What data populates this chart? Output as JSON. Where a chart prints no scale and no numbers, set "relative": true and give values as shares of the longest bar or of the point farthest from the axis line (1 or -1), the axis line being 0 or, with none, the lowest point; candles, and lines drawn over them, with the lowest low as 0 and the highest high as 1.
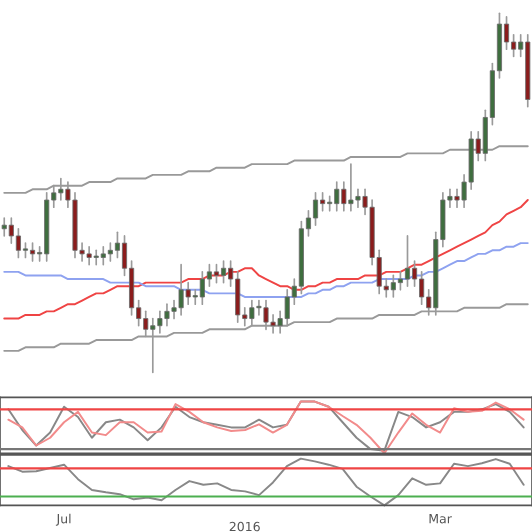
{
  "chart_data": [
    {
      "type": "candlestick",
      "relative": true,
      "categories": [
        null,
        null,
        null,
        null,
        null,
        null,
        null,
        null,
        null,
        null,
        null,
        null,
        null,
        null,
        null,
        null,
        null,
        null,
        null,
        null,
        null,
        null,
        null,
        null,
        null,
        null,
        null,
        null,
        null,
        null,
        null,
        null,
        null,
        null,
        null,
        null,
        null,
        null,
        null,
        null,
        null,
        null,
        null,
        null,
        null,
        null,
        null,
        null,
        null,
        null,
        null,
        null,
        null,
        null,
        null,
        null,
        null,
        null,
        null,
        null,
        null,
        null,
        null,
        null,
        null,
        null,
        null,
        null,
        null,
        null,
        null,
        null,
        null,
        null,
        null
      ],
      "ohlc": [
        [
          0.4,
          0.43,
          0.38,
          0.41
        ],
        [
          0.41,
          0.43,
          0.36,
          0.38
        ],
        [
          0.38,
          0.4,
          0.32,
          0.34
        ],
        [
          0.34,
          0.36,
          0.32,
          0.34
        ],
        [
          0.34,
          0.36,
          0.31,
          0.33
        ],
        [
          0.33,
          0.35,
          0.31,
          0.33
        ],
        [
          0.33,
          0.5,
          0.31,
          0.48
        ],
        [
          0.48,
          0.52,
          0.46,
          0.5
        ],
        [
          0.5,
          0.54,
          0.48,
          0.51
        ],
        [
          0.51,
          0.53,
          0.46,
          0.48
        ],
        [
          0.48,
          0.5,
          0.32,
          0.34
        ],
        [
          0.34,
          0.36,
          0.31,
          0.33
        ],
        [
          0.33,
          0.35,
          0.3,
          0.32
        ],
        [
          0.32,
          0.34,
          0.3,
          0.32
        ],
        [
          0.32,
          0.35,
          0.3,
          0.33
        ],
        [
          0.33,
          0.36,
          0.31,
          0.34
        ],
        [
          0.34,
          0.39,
          0.32,
          0.36
        ],
        [
          0.36,
          0.38,
          0.27,
          0.29
        ],
        [
          0.29,
          0.31,
          0.16,
          0.18
        ],
        [
          0.18,
          0.2,
          0.13,
          0.15
        ],
        [
          0.15,
          0.17,
          0.1,
          0.12
        ],
        [
          0.12,
          0.15,
          0.0,
          0.13
        ],
        [
          0.13,
          0.17,
          0.11,
          0.15
        ],
        [
          0.15,
          0.19,
          0.13,
          0.17
        ],
        [
          0.17,
          0.2,
          0.15,
          0.18
        ],
        [
          0.18,
          0.3,
          0.16,
          0.23
        ],
        [
          0.23,
          0.25,
          0.19,
          0.21
        ],
        [
          0.21,
          0.23,
          0.19,
          0.21
        ],
        [
          0.21,
          0.28,
          0.19,
          0.26
        ],
        [
          0.26,
          0.3,
          0.24,
          0.28
        ],
        [
          0.28,
          0.3,
          0.25,
          0.27
        ],
        [
          0.27,
          0.31,
          0.25,
          0.29
        ],
        [
          0.29,
          0.31,
          0.24,
          0.26
        ],
        [
          0.26,
          0.28,
          0.14,
          0.16
        ],
        [
          0.16,
          0.18,
          0.13,
          0.15
        ],
        [
          0.15,
          0.2,
          0.13,
          0.18
        ],
        [
          0.18,
          0.2,
          0.16,
          0.18
        ],
        [
          0.18,
          0.2,
          0.12,
          0.14
        ],
        [
          0.14,
          0.16,
          0.11,
          0.13
        ],
        [
          0.13,
          0.17,
          0.11,
          0.15
        ],
        [
          0.15,
          0.23,
          0.13,
          0.21
        ],
        [
          0.21,
          0.26,
          0.19,
          0.24
        ],
        [
          0.24,
          0.42,
          0.22,
          0.4
        ],
        [
          0.4,
          0.45,
          0.38,
          0.43
        ],
        [
          0.43,
          0.5,
          0.41,
          0.48
        ],
        [
          0.48,
          0.5,
          0.45,
          0.47
        ],
        [
          0.47,
          0.49,
          0.45,
          0.47
        ],
        [
          0.47,
          0.53,
          0.45,
          0.51
        ],
        [
          0.51,
          0.53,
          0.45,
          0.47
        ],
        [
          0.47,
          0.58,
          0.45,
          0.48
        ],
        [
          0.48,
          0.51,
          0.46,
          0.49
        ],
        [
          0.49,
          0.51,
          0.44,
          0.46
        ],
        [
          0.46,
          0.48,
          0.3,
          0.32
        ],
        [
          0.32,
          0.34,
          0.22,
          0.24
        ],
        [
          0.24,
          0.26,
          0.21,
          0.23
        ],
        [
          0.23,
          0.27,
          0.21,
          0.25
        ],
        [
          0.25,
          0.28,
          0.23,
          0.26
        ],
        [
          0.26,
          0.38,
          0.24,
          0.29
        ],
        [
          0.29,
          0.31,
          0.24,
          0.26
        ],
        [
          0.26,
          0.28,
          0.19,
          0.21
        ],
        [
          0.21,
          0.23,
          0.16,
          0.18
        ],
        [
          0.18,
          0.39,
          0.16,
          0.37
        ],
        [
          0.37,
          0.5,
          0.35,
          0.48
        ],
        [
          0.48,
          0.51,
          0.46,
          0.49
        ],
        [
          0.49,
          0.51,
          0.46,
          0.48
        ],
        [
          0.48,
          0.55,
          0.46,
          0.53
        ],
        [
          0.53,
          0.67,
          0.51,
          0.65
        ],
        [
          0.65,
          0.67,
          0.59,
          0.61
        ],
        [
          0.61,
          0.73,
          0.59,
          0.71
        ],
        [
          0.71,
          0.86,
          0.69,
          0.84
        ],
        [
          0.84,
          1.0,
          0.82,
          0.97
        ],
        [
          0.97,
          0.99,
          0.9,
          0.92
        ],
        [
          0.92,
          0.94,
          0.88,
          0.9
        ],
        [
          0.9,
          0.94,
          0.88,
          0.92
        ],
        [
          0.92,
          0.94,
          0.74,
          0.76
        ]
      ],
      "series": [
        {
          "type": "line",
          "color": "#ef4444",
          "values": [
            0.15,
            0.15,
            0.15,
            0.16,
            0.16,
            0.16,
            0.17,
            0.17,
            0.18,
            0.19,
            0.19,
            0.2,
            0.21,
            0.22,
            0.22,
            0.23,
            0.24,
            0.24,
            0.24,
            0.24,
            0.25,
            0.25,
            0.25,
            0.25,
            0.25,
            0.25,
            0.26,
            0.26,
            0.26,
            0.27,
            0.27,
            0.27,
            0.28,
            0.28,
            0.29,
            0.29,
            0.27,
            0.26,
            0.25,
            0.24,
            0.24,
            0.23,
            0.23,
            0.24,
            0.24,
            0.25,
            0.25,
            0.26,
            0.26,
            0.26,
            0.26,
            0.27,
            0.27,
            0.27,
            0.28,
            0.28,
            0.28,
            0.29,
            0.3,
            0.3,
            0.31,
            0.32,
            0.33,
            0.34,
            0.35,
            0.36,
            0.37,
            0.38,
            0.39,
            0.41,
            0.42,
            0.44,
            0.45,
            0.46,
            0.48
          ]
        },
        {
          "type": "line",
          "color": "#8ea2f0",
          "values": [
            0.28,
            0.28,
            0.28,
            0.27,
            0.27,
            0.27,
            0.27,
            0.27,
            0.27,
            0.26,
            0.26,
            0.26,
            0.26,
            0.26,
            0.26,
            0.25,
            0.25,
            0.25,
            0.25,
            0.25,
            0.24,
            0.24,
            0.24,
            0.24,
            0.24,
            0.23,
            0.23,
            0.23,
            0.23,
            0.22,
            0.22,
            0.22,
            0.22,
            0.22,
            0.21,
            0.21,
            0.21,
            0.21,
            0.21,
            0.21,
            0.21,
            0.21,
            0.21,
            0.22,
            0.22,
            0.23,
            0.23,
            0.24,
            0.24,
            0.25,
            0.25,
            0.25,
            0.25,
            0.26,
            0.26,
            0.26,
            0.26,
            0.26,
            0.27,
            0.27,
            0.28,
            0.28,
            0.29,
            0.3,
            0.31,
            0.31,
            0.32,
            0.33,
            0.33,
            0.34,
            0.34,
            0.35,
            0.35,
            0.36,
            0.36
          ]
        },
        {
          "type": "line",
          "color": "#999999",
          "values": [
            0.5,
            0.5,
            0.5,
            0.5,
            0.51,
            0.51,
            0.51,
            0.52,
            0.52,
            0.52,
            0.52,
            0.52,
            0.53,
            0.53,
            0.53,
            0.53,
            0.54,
            0.54,
            0.54,
            0.54,
            0.54,
            0.55,
            0.55,
            0.55,
            0.55,
            0.55,
            0.56,
            0.56,
            0.56,
            0.56,
            0.57,
            0.57,
            0.57,
            0.57,
            0.57,
            0.58,
            0.58,
            0.58,
            0.58,
            0.58,
            0.58,
            0.59,
            0.59,
            0.59,
            0.59,
            0.59,
            0.59,
            0.59,
            0.59,
            0.6,
            0.6,
            0.6,
            0.6,
            0.6,
            0.6,
            0.6,
            0.6,
            0.61,
            0.61,
            0.61,
            0.61,
            0.61,
            0.61,
            0.62,
            0.62,
            0.62,
            0.62,
            0.62,
            0.62,
            0.62,
            0.63,
            0.63,
            0.63,
            0.63,
            0.63
          ]
        },
        {
          "type": "line",
          "color": "#999999",
          "values": [
            0.06,
            0.06,
            0.06,
            0.07,
            0.07,
            0.07,
            0.07,
            0.07,
            0.08,
            0.08,
            0.08,
            0.08,
            0.08,
            0.09,
            0.09,
            0.09,
            0.09,
            0.09,
            0.09,
            0.1,
            0.1,
            0.1,
            0.1,
            0.1,
            0.11,
            0.11,
            0.11,
            0.11,
            0.11,
            0.12,
            0.12,
            0.12,
            0.12,
            0.12,
            0.12,
            0.13,
            0.13,
            0.13,
            0.13,
            0.13,
            0.13,
            0.14,
            0.14,
            0.14,
            0.14,
            0.14,
            0.14,
            0.15,
            0.15,
            0.15,
            0.15,
            0.15,
            0.15,
            0.16,
            0.16,
            0.16,
            0.16,
            0.16,
            0.16,
            0.17,
            0.17,
            0.17,
            0.17,
            0.17,
            0.17,
            0.18,
            0.18,
            0.18,
            0.18,
            0.18,
            0.18,
            0.19,
            0.19,
            0.19,
            0.19
          ]
        }
      ]
    },
    {
      "type": "line",
      "relative": true,
      "categories": [
        null,
        null,
        null,
        null,
        null,
        null,
        null,
        null,
        null,
        null,
        null,
        null,
        null,
        null,
        null,
        null,
        null,
        null,
        null,
        null,
        null,
        null,
        null,
        null,
        null,
        null,
        null,
        null,
        null,
        null,
        null,
        null,
        null,
        null,
        null,
        null,
        null,
        null
      ],
      "ref_lines": [
        {
          "axis": "y",
          "value": 0.85,
          "color": "#ef4444"
        },
        {
          "axis": "y",
          "value": 0.08,
          "color": "#777777"
        }
      ],
      "series": [
        {
          "type": "line",
          "color": "#888888",
          "values": [
            0.85,
            0.45,
            0.15,
            0.4,
            0.9,
            0.7,
            0.3,
            0.6,
            0.65,
            0.5,
            0.25,
            0.5,
            0.9,
            0.7,
            0.6,
            0.55,
            0.5,
            0.5,
            0.65,
            0.5,
            0.55,
            1.0,
            1.0,
            0.9,
            0.6,
            0.3,
            0.08,
            0.05,
            0.8,
            0.7,
            0.5,
            0.6,
            0.8,
            0.8,
            0.85,
            0.95,
            0.8,
            0.5
          ]
        },
        {
          "type": "line",
          "color": "#f28b8b",
          "values": [
            0.65,
            0.5,
            0.15,
            0.3,
            0.6,
            0.8,
            0.4,
            0.35,
            0.6,
            0.6,
            0.4,
            0.42,
            0.95,
            0.8,
            0.6,
            0.5,
            0.43,
            0.45,
            0.56,
            0.4,
            0.55,
            1.0,
            1.0,
            0.9,
            0.72,
            0.55,
            0.3,
            0.0,
            0.4,
            0.77,
            0.55,
            0.4,
            0.87,
            0.8,
            0.82,
            0.98,
            0.85,
            0.65
          ]
        }
      ]
    },
    {
      "type": "line",
      "relative": true,
      "categories": [
        null,
        null,
        null,
        null,
        "Jul",
        null,
        null,
        null,
        null,
        null,
        null,
        null,
        null,
        null,
        null,
        null,
        null,
        null,
        null,
        null,
        null,
        null,
        null,
        null,
        null,
        null,
        null,
        null,
        null,
        null,
        null,
        "Mar",
        null,
        null,
        null,
        null,
        null,
        null
      ],
      "annotations": [
        "2016"
      ],
      "ref_lines": [
        {
          "axis": "y",
          "value": 0.79,
          "color": "#ef4444"
        },
        {
          "axis": "y",
          "value": 0.19,
          "color": "#4caf50"
        }
      ],
      "series": [
        {
          "type": "line",
          "color": "#888888",
          "values": [
            0.84,
            0.72,
            0.73,
            0.8,
            0.87,
            0.56,
            0.33,
            0.28,
            0.24,
            0.13,
            0.17,
            0.11,
            0.33,
            0.52,
            0.44,
            0.47,
            0.33,
            0.3,
            0.22,
            0.49,
            0.84,
            1.0,
            0.94,
            0.87,
            0.78,
            0.4,
            0.19,
            0.0,
            0.22,
            0.58,
            0.44,
            0.47,
            0.89,
            0.84,
            0.9,
            0.99,
            0.89,
            0.44
          ]
        }
      ]
    }
  ]
}
